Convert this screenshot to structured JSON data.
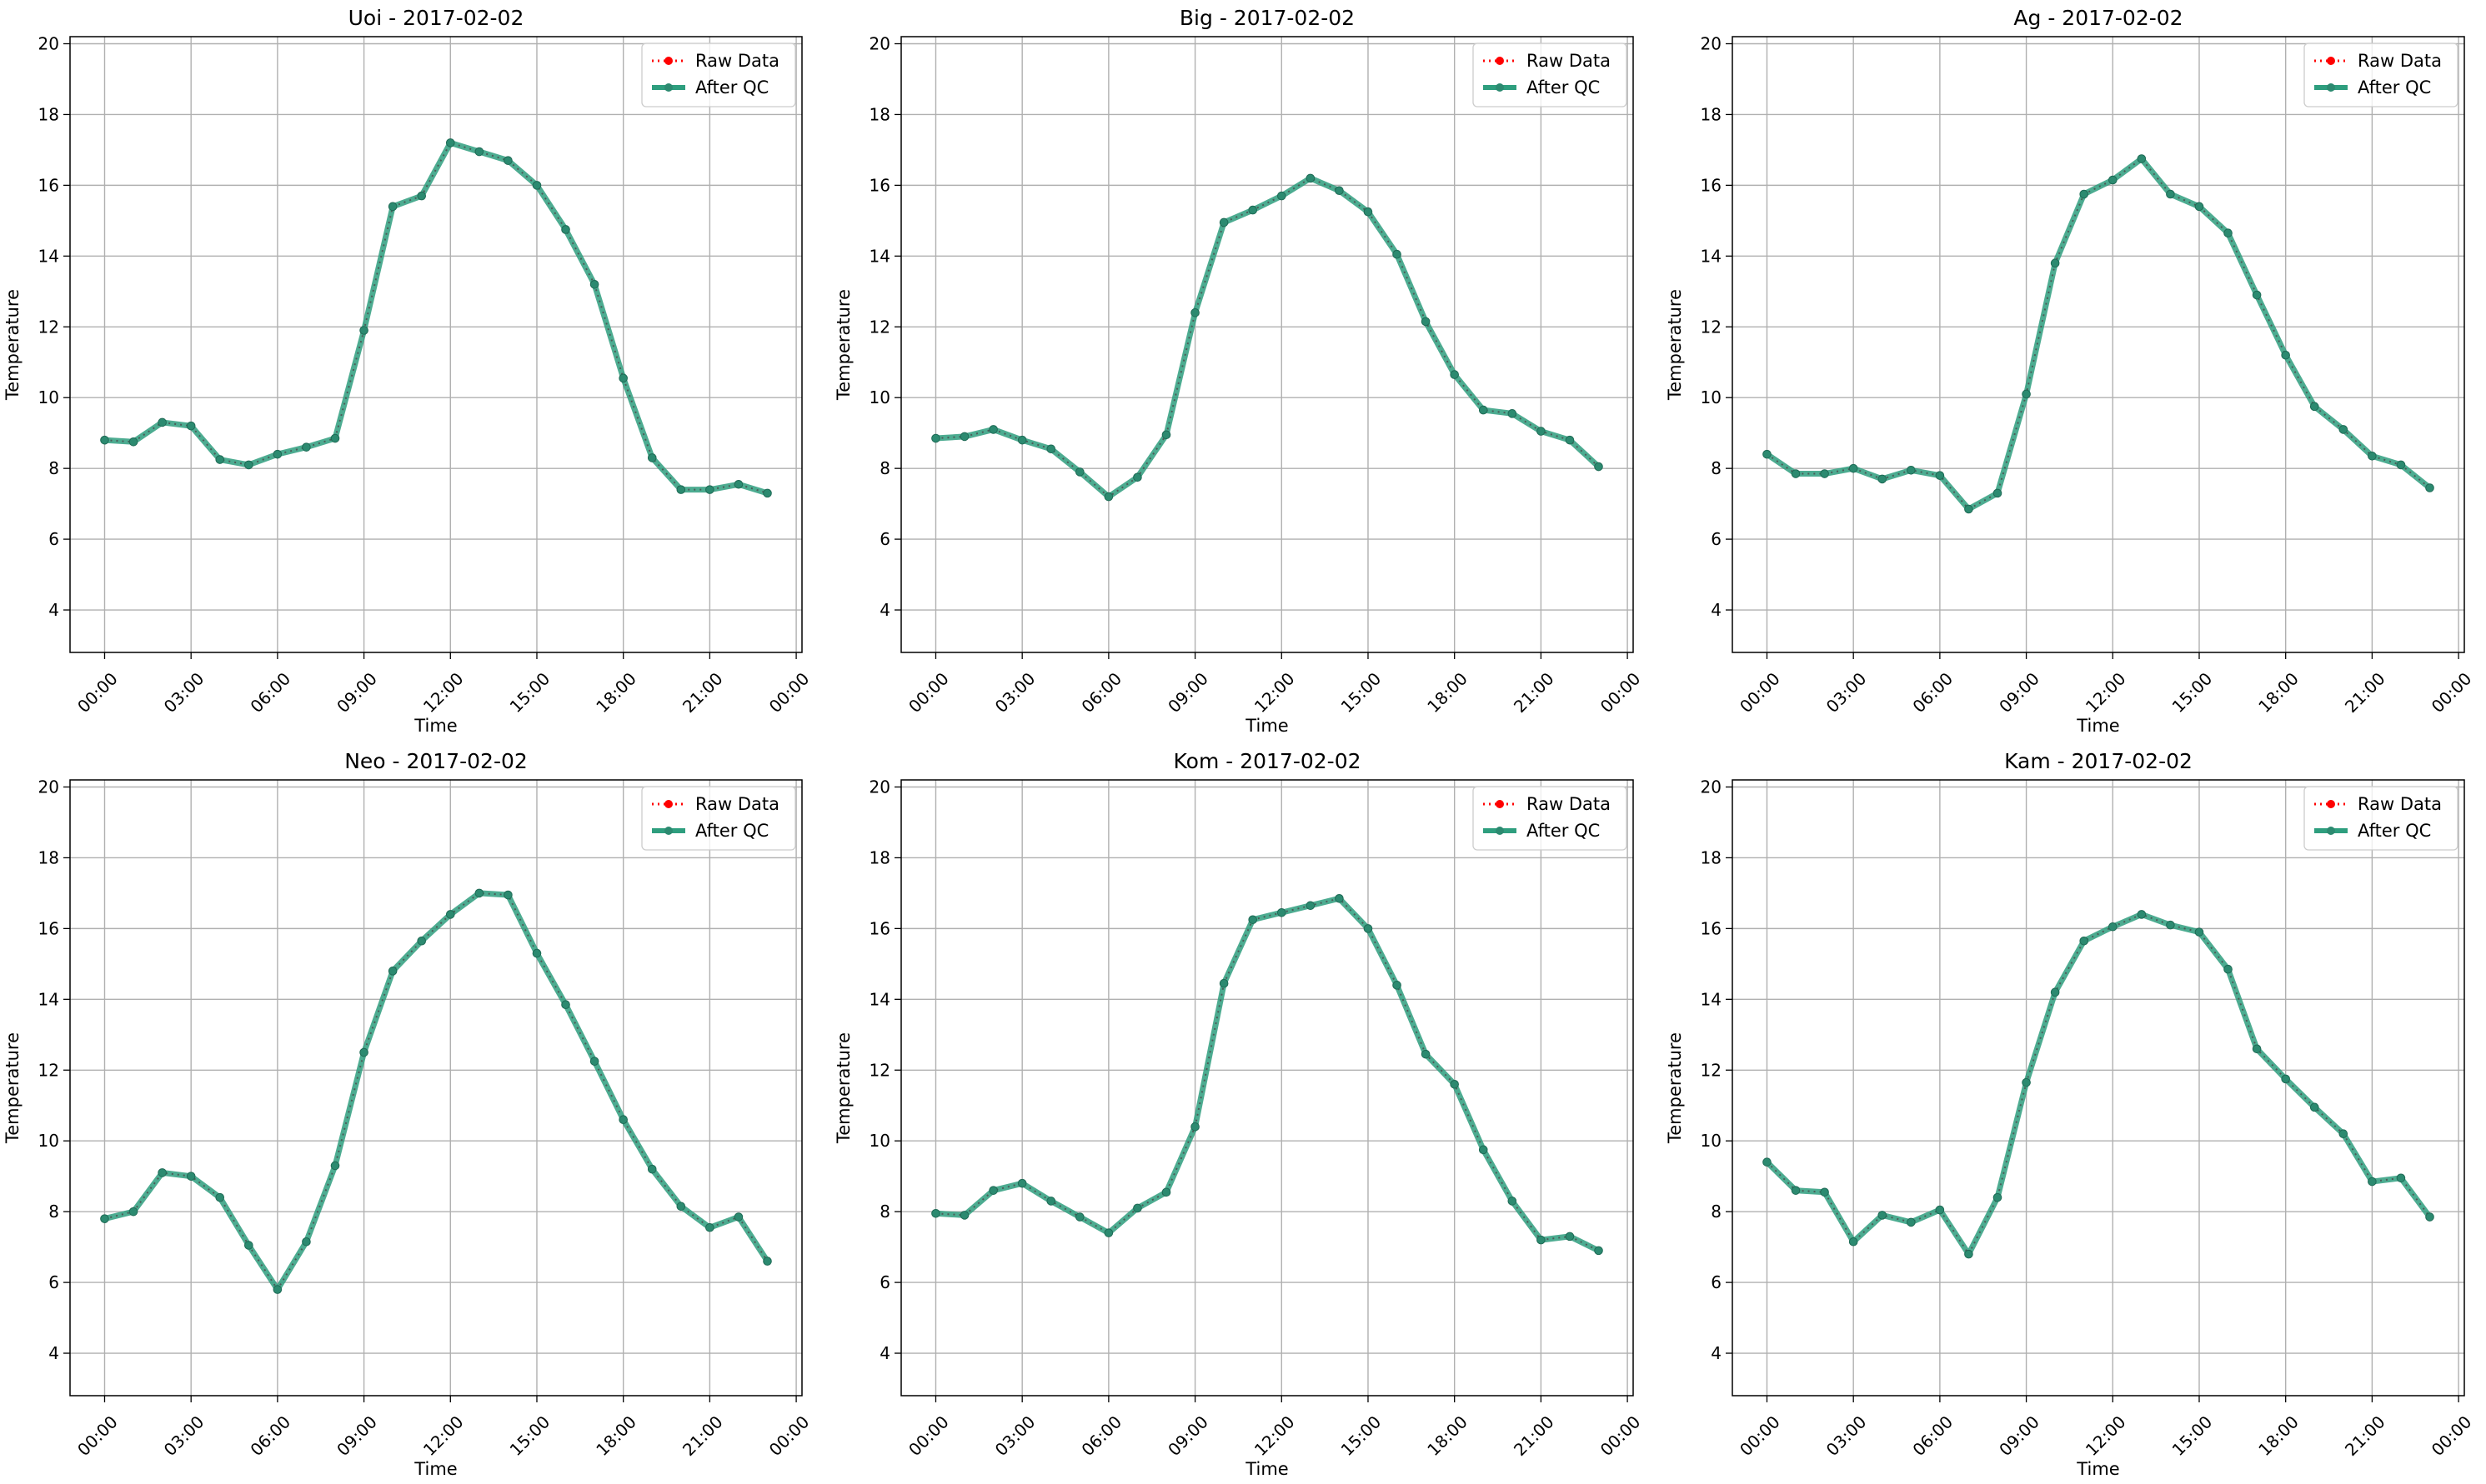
{
  "figure": {
    "legend_labels": {
      "raw": "Raw Data",
      "qc": "After QC"
    },
    "colors": {
      "raw": "#ff0000",
      "qc": "#2e9e7e",
      "marker_qc": "#2c8a70",
      "grid": "#b0b0b0"
    },
    "xticks": [
      "00:00",
      "03:00",
      "06:00",
      "09:00",
      "12:00",
      "15:00",
      "18:00",
      "21:00",
      "00:00"
    ],
    "yticks": [
      4,
      6,
      8,
      10,
      12,
      14,
      16,
      18,
      20
    ],
    "xlim": [
      -1.2,
      24.2
    ],
    "ylim": [
      2.8,
      20.2
    ]
  },
  "chart_data": [
    {
      "type": "line",
      "title": "Uoi - 2017-02-02",
      "xlabel": "Time",
      "ylabel": "Temperature",
      "grid": true,
      "legend": "top-right",
      "x": [
        0,
        1,
        2,
        3,
        4,
        5,
        6,
        7,
        8,
        9,
        10,
        11,
        12,
        13,
        14,
        15,
        16,
        17,
        18,
        19,
        20,
        21,
        22,
        23
      ],
      "series": [
        {
          "name": "Raw Data",
          "values": [
            8.8,
            8.75,
            9.3,
            9.2,
            8.25,
            8.1,
            8.4,
            8.6,
            8.85,
            11.9,
            15.4,
            15.7,
            17.2,
            16.95,
            16.7,
            16.0,
            14.75,
            13.2,
            10.55,
            8.3,
            7.4,
            7.4,
            7.55,
            7.3
          ]
        },
        {
          "name": "After QC",
          "values": [
            8.8,
            8.75,
            9.3,
            9.2,
            8.25,
            8.1,
            8.4,
            8.6,
            8.85,
            11.9,
            15.4,
            15.7,
            17.2,
            16.95,
            16.7,
            16.0,
            14.75,
            13.2,
            10.55,
            8.3,
            7.4,
            7.4,
            7.55,
            7.3
          ]
        }
      ]
    },
    {
      "type": "line",
      "title": "Big - 2017-02-02",
      "xlabel": "Time",
      "ylabel": "Temperature",
      "grid": true,
      "legend": "top-right",
      "x": [
        0,
        1,
        2,
        3,
        4,
        5,
        6,
        7,
        8,
        9,
        10,
        11,
        12,
        13,
        14,
        15,
        16,
        17,
        18,
        19,
        20,
        21,
        22,
        23
      ],
      "series": [
        {
          "name": "Raw Data",
          "values": [
            8.85,
            8.9,
            9.1,
            8.8,
            8.55,
            7.9,
            7.2,
            7.75,
            8.95,
            12.4,
            14.95,
            15.3,
            15.7,
            16.2,
            15.85,
            15.25,
            14.05,
            12.15,
            10.65,
            9.65,
            9.55,
            9.05,
            8.8,
            8.05
          ]
        },
        {
          "name": "After QC",
          "values": [
            8.85,
            8.9,
            9.1,
            8.8,
            8.55,
            7.9,
            7.2,
            7.75,
            8.95,
            12.4,
            14.95,
            15.3,
            15.7,
            16.2,
            15.85,
            15.25,
            14.05,
            12.15,
            10.65,
            9.65,
            9.55,
            9.05,
            8.8,
            8.05
          ]
        }
      ]
    },
    {
      "type": "line",
      "title": "Ag - 2017-02-02",
      "xlabel": "Time",
      "ylabel": "Temperature",
      "grid": true,
      "legend": "top-right",
      "x": [
        0,
        1,
        2,
        3,
        4,
        5,
        6,
        7,
        8,
        9,
        10,
        11,
        12,
        13,
        14,
        15,
        16,
        17,
        18,
        19,
        20,
        21,
        22,
        23
      ],
      "series": [
        {
          "name": "Raw Data",
          "values": [
            8.4,
            7.85,
            7.85,
            8.0,
            7.7,
            7.95,
            7.8,
            6.85,
            7.3,
            10.1,
            13.8,
            15.75,
            16.15,
            16.75,
            15.75,
            15.4,
            14.65,
            12.9,
            11.2,
            9.75,
            9.1,
            8.35,
            8.1,
            7.45
          ]
        },
        {
          "name": "After QC",
          "values": [
            8.4,
            7.85,
            7.85,
            8.0,
            7.7,
            7.95,
            7.8,
            6.85,
            7.3,
            10.1,
            13.8,
            15.75,
            16.15,
            16.75,
            15.75,
            15.4,
            14.65,
            12.9,
            11.2,
            9.75,
            9.1,
            8.35,
            8.1,
            7.45
          ]
        }
      ]
    },
    {
      "type": "line",
      "title": "Neo - 2017-02-02",
      "xlabel": "Time",
      "ylabel": "Temperature",
      "grid": true,
      "legend": "top-right",
      "x": [
        0,
        1,
        2,
        3,
        4,
        5,
        6,
        7,
        8,
        9,
        10,
        11,
        12,
        13,
        14,
        15,
        16,
        17,
        18,
        19,
        20,
        21,
        22,
        23
      ],
      "series": [
        {
          "name": "Raw Data",
          "values": [
            7.8,
            8.0,
            9.1,
            9.0,
            8.4,
            7.05,
            5.8,
            7.15,
            9.3,
            12.5,
            14.8,
            15.65,
            16.4,
            17.0,
            16.95,
            15.3,
            13.85,
            12.25,
            10.6,
            9.2,
            8.15,
            7.55,
            7.85,
            6.6
          ]
        },
        {
          "name": "After QC",
          "values": [
            7.8,
            8.0,
            9.1,
            9.0,
            8.4,
            7.05,
            5.8,
            7.15,
            9.3,
            12.5,
            14.8,
            15.65,
            16.4,
            17.0,
            16.95,
            15.3,
            13.85,
            12.25,
            10.6,
            9.2,
            8.15,
            7.55,
            7.85,
            6.6
          ]
        }
      ]
    },
    {
      "type": "line",
      "title": "Kom - 2017-02-02",
      "xlabel": "Time",
      "ylabel": "Temperature",
      "grid": true,
      "legend": "top-right",
      "x": [
        0,
        1,
        2,
        3,
        4,
        5,
        6,
        7,
        8,
        9,
        10,
        11,
        12,
        13,
        14,
        15,
        16,
        17,
        18,
        19,
        20,
        21,
        22,
        23
      ],
      "series": [
        {
          "name": "Raw Data",
          "values": [
            7.95,
            7.9,
            8.6,
            8.8,
            8.3,
            7.85,
            7.4,
            8.1,
            8.55,
            10.4,
            14.45,
            16.25,
            16.45,
            16.65,
            16.85,
            16.0,
            14.4,
            12.45,
            11.6,
            9.75,
            8.3,
            7.2,
            7.3,
            6.9
          ]
        },
        {
          "name": "After QC",
          "values": [
            7.95,
            7.9,
            8.6,
            8.8,
            8.3,
            7.85,
            7.4,
            8.1,
            8.55,
            10.4,
            14.45,
            16.25,
            16.45,
            16.65,
            16.85,
            16.0,
            14.4,
            12.45,
            11.6,
            9.75,
            8.3,
            7.2,
            7.3,
            6.9
          ]
        }
      ]
    },
    {
      "type": "line",
      "title": "Kam - 2017-02-02",
      "xlabel": "Time",
      "ylabel": "Temperature",
      "grid": true,
      "legend": "top-right",
      "x": [
        0,
        1,
        2,
        3,
        4,
        5,
        6,
        7,
        8,
        9,
        10,
        11,
        12,
        13,
        14,
        15,
        16,
        17,
        18,
        19,
        20,
        21,
        22,
        23
      ],
      "series": [
        {
          "name": "Raw Data",
          "values": [
            9.4,
            8.6,
            8.55,
            7.15,
            7.9,
            7.7,
            8.05,
            6.8,
            8.4,
            11.65,
            14.2,
            15.65,
            16.05,
            16.4,
            16.1,
            15.9,
            14.85,
            12.6,
            11.75,
            10.95,
            10.2,
            8.85,
            8.95,
            7.85
          ]
        },
        {
          "name": "After QC",
          "values": [
            9.4,
            8.6,
            8.55,
            7.15,
            7.9,
            7.7,
            8.05,
            6.8,
            8.4,
            11.65,
            14.2,
            15.65,
            16.05,
            16.4,
            16.1,
            15.9,
            14.85,
            12.6,
            11.75,
            10.95,
            10.2,
            8.85,
            8.95,
            7.85
          ]
        }
      ]
    }
  ]
}
